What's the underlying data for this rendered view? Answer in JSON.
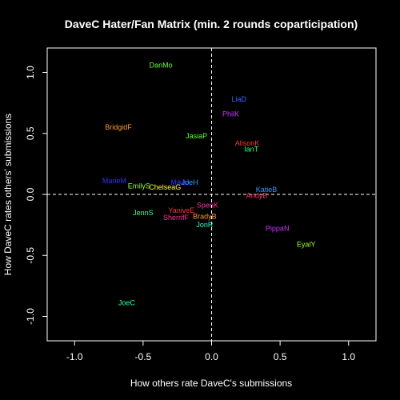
{
  "chart_data": {
    "type": "scatter",
    "title": "DaveC Hater/Fan Matrix (min. 2 rounds coparticipation)",
    "xlabel": "How others rate DaveC's submissions",
    "ylabel": "How DaveC rates others' submissions",
    "xlim": [
      -1.2,
      1.2
    ],
    "ylim": [
      -1.2,
      1.2
    ],
    "xticks": [
      -1.0,
      -0.5,
      0.0,
      0.5,
      1.0
    ],
    "yticks": [
      -1.0,
      -0.5,
      0.0,
      0.5,
      1.0
    ],
    "xtick_labels": [
      "-1.0",
      "-0.5",
      "0.0",
      "0.5",
      "1.0"
    ],
    "ytick_labels": [
      "-1.0",
      "-0.5",
      "0.0",
      "0.5",
      "1.0"
    ],
    "reference_lines": {
      "x": 0,
      "y": 0,
      "style": "dashed"
    },
    "grid": false,
    "points": [
      {
        "label": "DanMo",
        "x": -0.37,
        "y": 1.06,
        "color": "#66ff33"
      },
      {
        "label": "LiaD",
        "x": 0.2,
        "y": 0.78,
        "color": "#3366ff"
      },
      {
        "label": "PhilK",
        "x": 0.14,
        "y": 0.66,
        "color": "#cc33ff"
      },
      {
        "label": "BridgidF",
        "x": -0.68,
        "y": 0.55,
        "color": "#ff9933"
      },
      {
        "label": "JasiaP",
        "x": -0.11,
        "y": 0.48,
        "color": "#66ff33"
      },
      {
        "label": "AlisonK",
        "x": 0.26,
        "y": 0.42,
        "color": "#ff3333"
      },
      {
        "label": "IanT",
        "x": 0.29,
        "y": 0.37,
        "color": "#33ff66"
      },
      {
        "label": "MarieM",
        "x": -0.71,
        "y": 0.11,
        "color": "#3333ff"
      },
      {
        "label": "EmilyS",
        "x": -0.53,
        "y": 0.07,
        "color": "#99ff33"
      },
      {
        "label": "MikeJ",
        "x": -0.23,
        "y": 0.1,
        "color": "#3333ff"
      },
      {
        "label": "JoeH",
        "x": -0.16,
        "y": 0.1,
        "color": "#3399ff"
      },
      {
        "label": "ChelseaG",
        "x": -0.34,
        "y": 0.06,
        "color": "#ffff33"
      },
      {
        "label": "KatieB",
        "x": 0.4,
        "y": 0.04,
        "color": "#3399ff"
      },
      {
        "label": "AndyB",
        "x": 0.33,
        "y": -0.01,
        "color": "#ff3366"
      },
      {
        "label": "SpenK",
        "x": -0.03,
        "y": -0.09,
        "color": "#ff3399"
      },
      {
        "label": "YaniveE",
        "x": -0.22,
        "y": -0.13,
        "color": "#ff3333"
      },
      {
        "label": "JennS",
        "x": -0.5,
        "y": -0.15,
        "color": "#33ff99"
      },
      {
        "label": "BradyB",
        "x": -0.05,
        "y": -0.18,
        "color": "#ff9933"
      },
      {
        "label": "SherrifF",
        "x": -0.26,
        "y": -0.19,
        "color": "#ff3399"
      },
      {
        "label": "JonR",
        "x": -0.05,
        "y": -0.25,
        "color": "#33ffcc"
      },
      {
        "label": "PippaN",
        "x": 0.48,
        "y": -0.28,
        "color": "#cc33ff"
      },
      {
        "label": "EyalY",
        "x": 0.69,
        "y": -0.41,
        "color": "#99ff33"
      },
      {
        "label": "JoeC",
        "x": -0.62,
        "y": -0.89,
        "color": "#33ff99"
      }
    ]
  }
}
